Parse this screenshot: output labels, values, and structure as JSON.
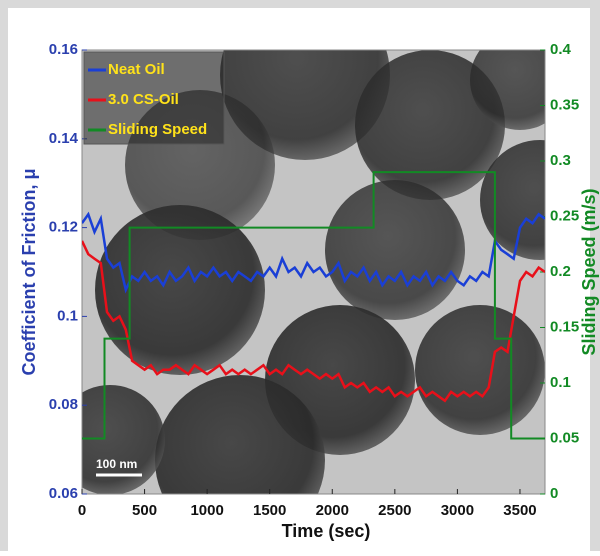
{
  "chart_data": {
    "type": "line",
    "x_label": "Time (sec)",
    "y_label": "Coefficient of Friction, μ",
    "y2_label": "Sliding Speed (m/s)",
    "scale_bar": "100 nm",
    "xlim": [
      0,
      3700
    ],
    "xticks": [
      0,
      500,
      1000,
      1500,
      2000,
      2500,
      3000,
      3500
    ],
    "ylim": [
      0.06,
      0.16
    ],
    "yticks": [
      0.06,
      0.08,
      0.1,
      0.12,
      0.14,
      0.16
    ],
    "y2lim": [
      0,
      0.4
    ],
    "y2ticks": [
      0,
      0.05,
      0.1,
      0.15,
      0.2,
      0.25,
      0.3,
      0.35,
      0.4
    ],
    "legend": "upper left",
    "series": [
      {
        "name": "Neat Oil",
        "color": "#1a3fd6",
        "x": [
          0,
          50,
          100,
          150,
          200,
          250,
          300,
          350,
          400,
          450,
          500,
          550,
          600,
          650,
          700,
          750,
          800,
          850,
          900,
          950,
          1000,
          1050,
          1100,
          1150,
          1200,
          1250,
          1300,
          1350,
          1400,
          1450,
          1500,
          1550,
          1600,
          1650,
          1700,
          1750,
          1800,
          1850,
          1900,
          1950,
          2000,
          2050,
          2100,
          2150,
          2200,
          2250,
          2300,
          2350,
          2400,
          2450,
          2500,
          2550,
          2600,
          2650,
          2700,
          2750,
          2800,
          2850,
          2900,
          2950,
          3000,
          3050,
          3100,
          3150,
          3200,
          3250,
          3300,
          3350,
          3400,
          3450,
          3500,
          3550,
          3600,
          3650,
          3700
        ],
        "values": [
          0.121,
          0.123,
          0.119,
          0.122,
          0.113,
          0.111,
          0.112,
          0.106,
          0.109,
          0.108,
          0.11,
          0.108,
          0.109,
          0.107,
          0.11,
          0.108,
          0.109,
          0.111,
          0.108,
          0.11,
          0.109,
          0.111,
          0.109,
          0.11,
          0.108,
          0.11,
          0.109,
          0.108,
          0.11,
          0.109,
          0.111,
          0.109,
          0.113,
          0.11,
          0.111,
          0.109,
          0.112,
          0.11,
          0.111,
          0.109,
          0.11,
          0.112,
          0.108,
          0.11,
          0.109,
          0.111,
          0.108,
          0.11,
          0.107,
          0.109,
          0.108,
          0.11,
          0.107,
          0.109,
          0.108,
          0.11,
          0.107,
          0.109,
          0.108,
          0.11,
          0.108,
          0.107,
          0.109,
          0.108,
          0.11,
          0.109,
          0.117,
          0.115,
          0.114,
          0.113,
          0.12,
          0.122,
          0.121,
          0.123,
          0.122
        ]
      },
      {
        "name": "3.0 CS-Oil",
        "color": "#e8101a",
        "x": [
          0,
          50,
          100,
          150,
          200,
          250,
          300,
          350,
          400,
          450,
          500,
          550,
          600,
          650,
          700,
          750,
          800,
          850,
          900,
          950,
          1000,
          1050,
          1100,
          1150,
          1200,
          1250,
          1300,
          1350,
          1400,
          1450,
          1500,
          1550,
          1600,
          1650,
          1700,
          1750,
          1800,
          1850,
          1900,
          1950,
          2000,
          2050,
          2100,
          2150,
          2200,
          2250,
          2300,
          2350,
          2400,
          2450,
          2500,
          2550,
          2600,
          2650,
          2700,
          2750,
          2800,
          2850,
          2900,
          2950,
          3000,
          3050,
          3100,
          3150,
          3200,
          3250,
          3300,
          3350,
          3400,
          3450,
          3500,
          3550,
          3600,
          3650,
          3700
        ],
        "values": [
          0.117,
          0.114,
          0.113,
          0.112,
          0.101,
          0.099,
          0.1,
          0.097,
          0.09,
          0.089,
          0.088,
          0.089,
          0.087,
          0.088,
          0.088,
          0.089,
          0.088,
          0.087,
          0.089,
          0.088,
          0.087,
          0.088,
          0.089,
          0.087,
          0.088,
          0.087,
          0.088,
          0.087,
          0.088,
          0.089,
          0.087,
          0.088,
          0.087,
          0.089,
          0.088,
          0.087,
          0.088,
          0.087,
          0.086,
          0.087,
          0.086,
          0.087,
          0.084,
          0.085,
          0.084,
          0.085,
          0.083,
          0.084,
          0.083,
          0.084,
          0.082,
          0.083,
          0.082,
          0.083,
          0.084,
          0.082,
          0.083,
          0.082,
          0.081,
          0.083,
          0.082,
          0.083,
          0.082,
          0.083,
          0.082,
          0.084,
          0.092,
          0.093,
          0.092,
          0.1,
          0.108,
          0.11,
          0.109,
          0.111,
          0.11
        ]
      },
      {
        "name": "Sliding Speed",
        "color": "#128a24",
        "axis": "y2",
        "x": [
          0,
          180,
          180,
          380,
          380,
          2330,
          2330,
          3300,
          3300,
          3430,
          3430,
          3700
        ],
        "values": [
          0.05,
          0.05,
          0.14,
          0.14,
          0.24,
          0.24,
          0.29,
          0.29,
          0.14,
          0.14,
          0.05,
          0.05
        ]
      }
    ]
  }
}
